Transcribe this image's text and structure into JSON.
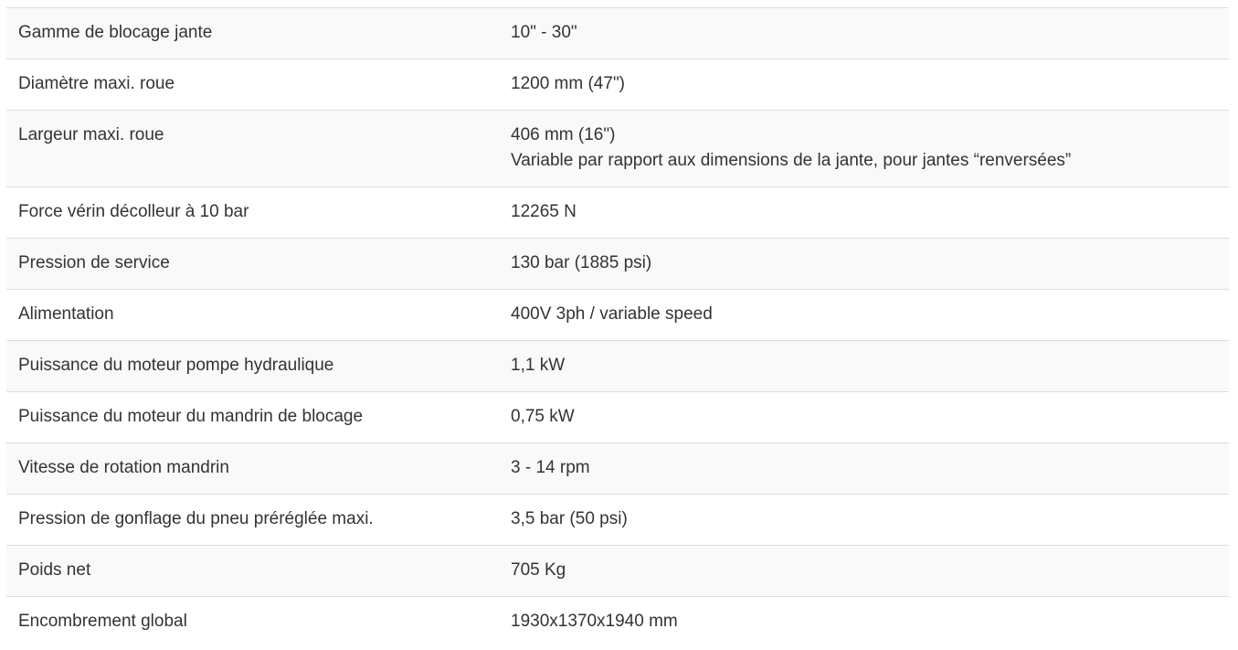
{
  "specs": [
    {
      "label": "Gamme de blocage jante",
      "value": [
        "10\" - 30\""
      ]
    },
    {
      "label": "Diamètre maxi. roue",
      "value": [
        "1200 mm (47\")"
      ]
    },
    {
      "label": "Largeur maxi. roue",
      "value": [
        "406 mm (16\")",
        "Variable par rapport aux dimensions de la jante, pour jantes “renversées”"
      ]
    },
    {
      "label": "Force vérin décolleur à 10 bar",
      "value": [
        "12265 N"
      ]
    },
    {
      "label": "Pression de service",
      "value": [
        "130 bar (1885 psi)"
      ]
    },
    {
      "label": "Alimentation",
      "value": [
        "400V 3ph / variable speed"
      ]
    },
    {
      "label": "Puissance du moteur pompe hydraulique",
      "value": [
        "1,1 kW"
      ]
    },
    {
      "label": "Puissance du moteur du mandrin de blocage",
      "value": [
        "0,75 kW"
      ]
    },
    {
      "label": "Vitesse de rotation mandrin",
      "value": [
        "3 - 14 rpm"
      ]
    },
    {
      "label": "Pression de gonflage du pneu préréglée maxi.",
      "value": [
        "3,5 bar (50 psi)"
      ]
    },
    {
      "label": "Poids net",
      "value": [
        "705 Kg"
      ]
    },
    {
      "label": "Encombrement global",
      "value": [
        "1930x1370x1940 mm"
      ]
    }
  ]
}
